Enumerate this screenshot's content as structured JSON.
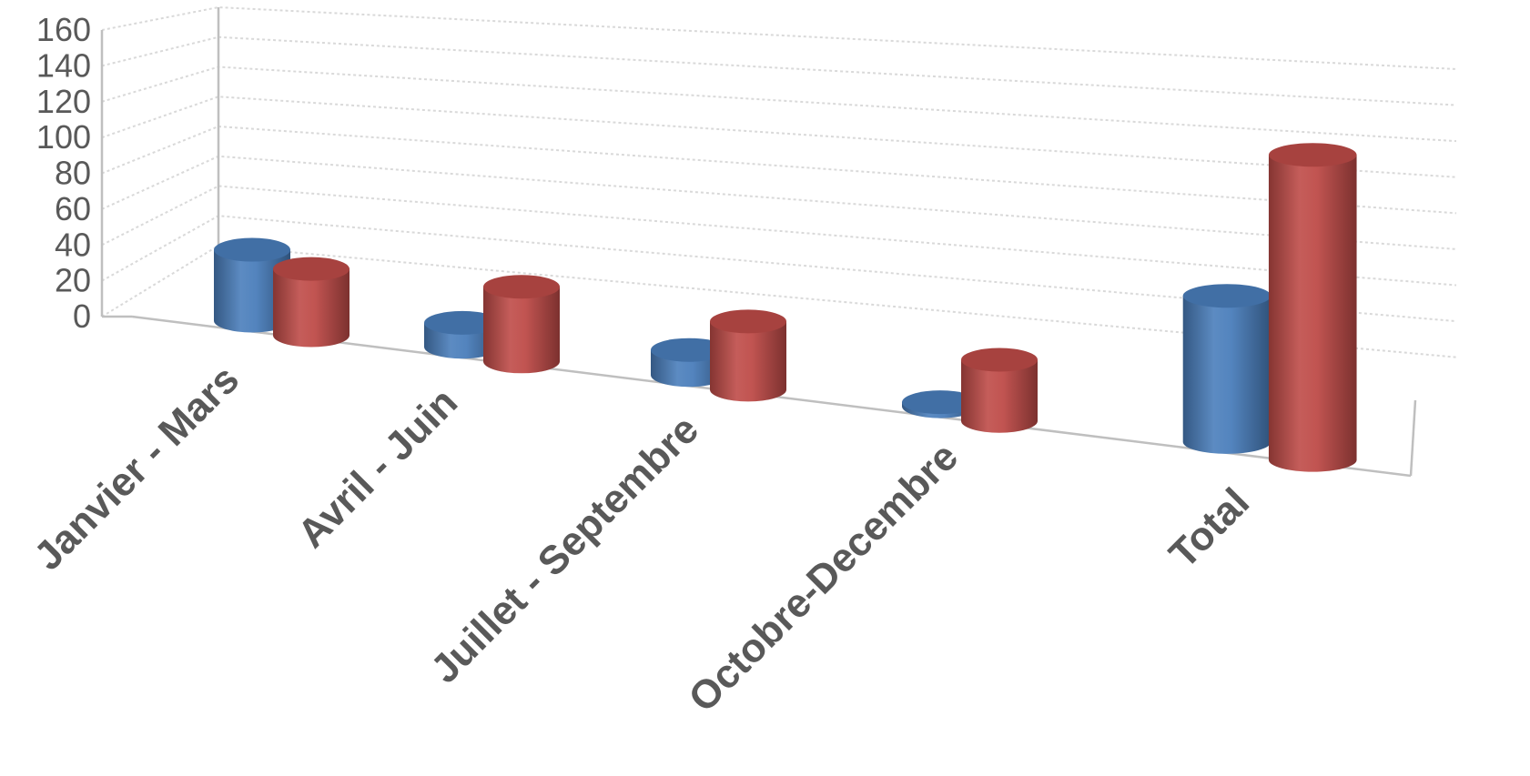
{
  "chart_data": {
    "type": "bar",
    "style": "3d-cylinder",
    "categories": [
      "Janvier - Mars",
      "Avril - Juin",
      "Juillet - Septembre",
      "Octobre-Decembre",
      "Total"
    ],
    "series": [
      {
        "color": "#4a7ebb",
        "values": [
          40,
          13,
          13,
          2,
          69
        ]
      },
      {
        "color": "#be4b48",
        "values": [
          37,
          40,
          35,
          30,
          142
        ]
      }
    ],
    "yticks": [
      "0",
      "20",
      "40",
      "60",
      "80",
      "100",
      "120",
      "140",
      "160"
    ],
    "ylim": [
      0,
      160
    ],
    "grid": true,
    "legend": "none"
  }
}
